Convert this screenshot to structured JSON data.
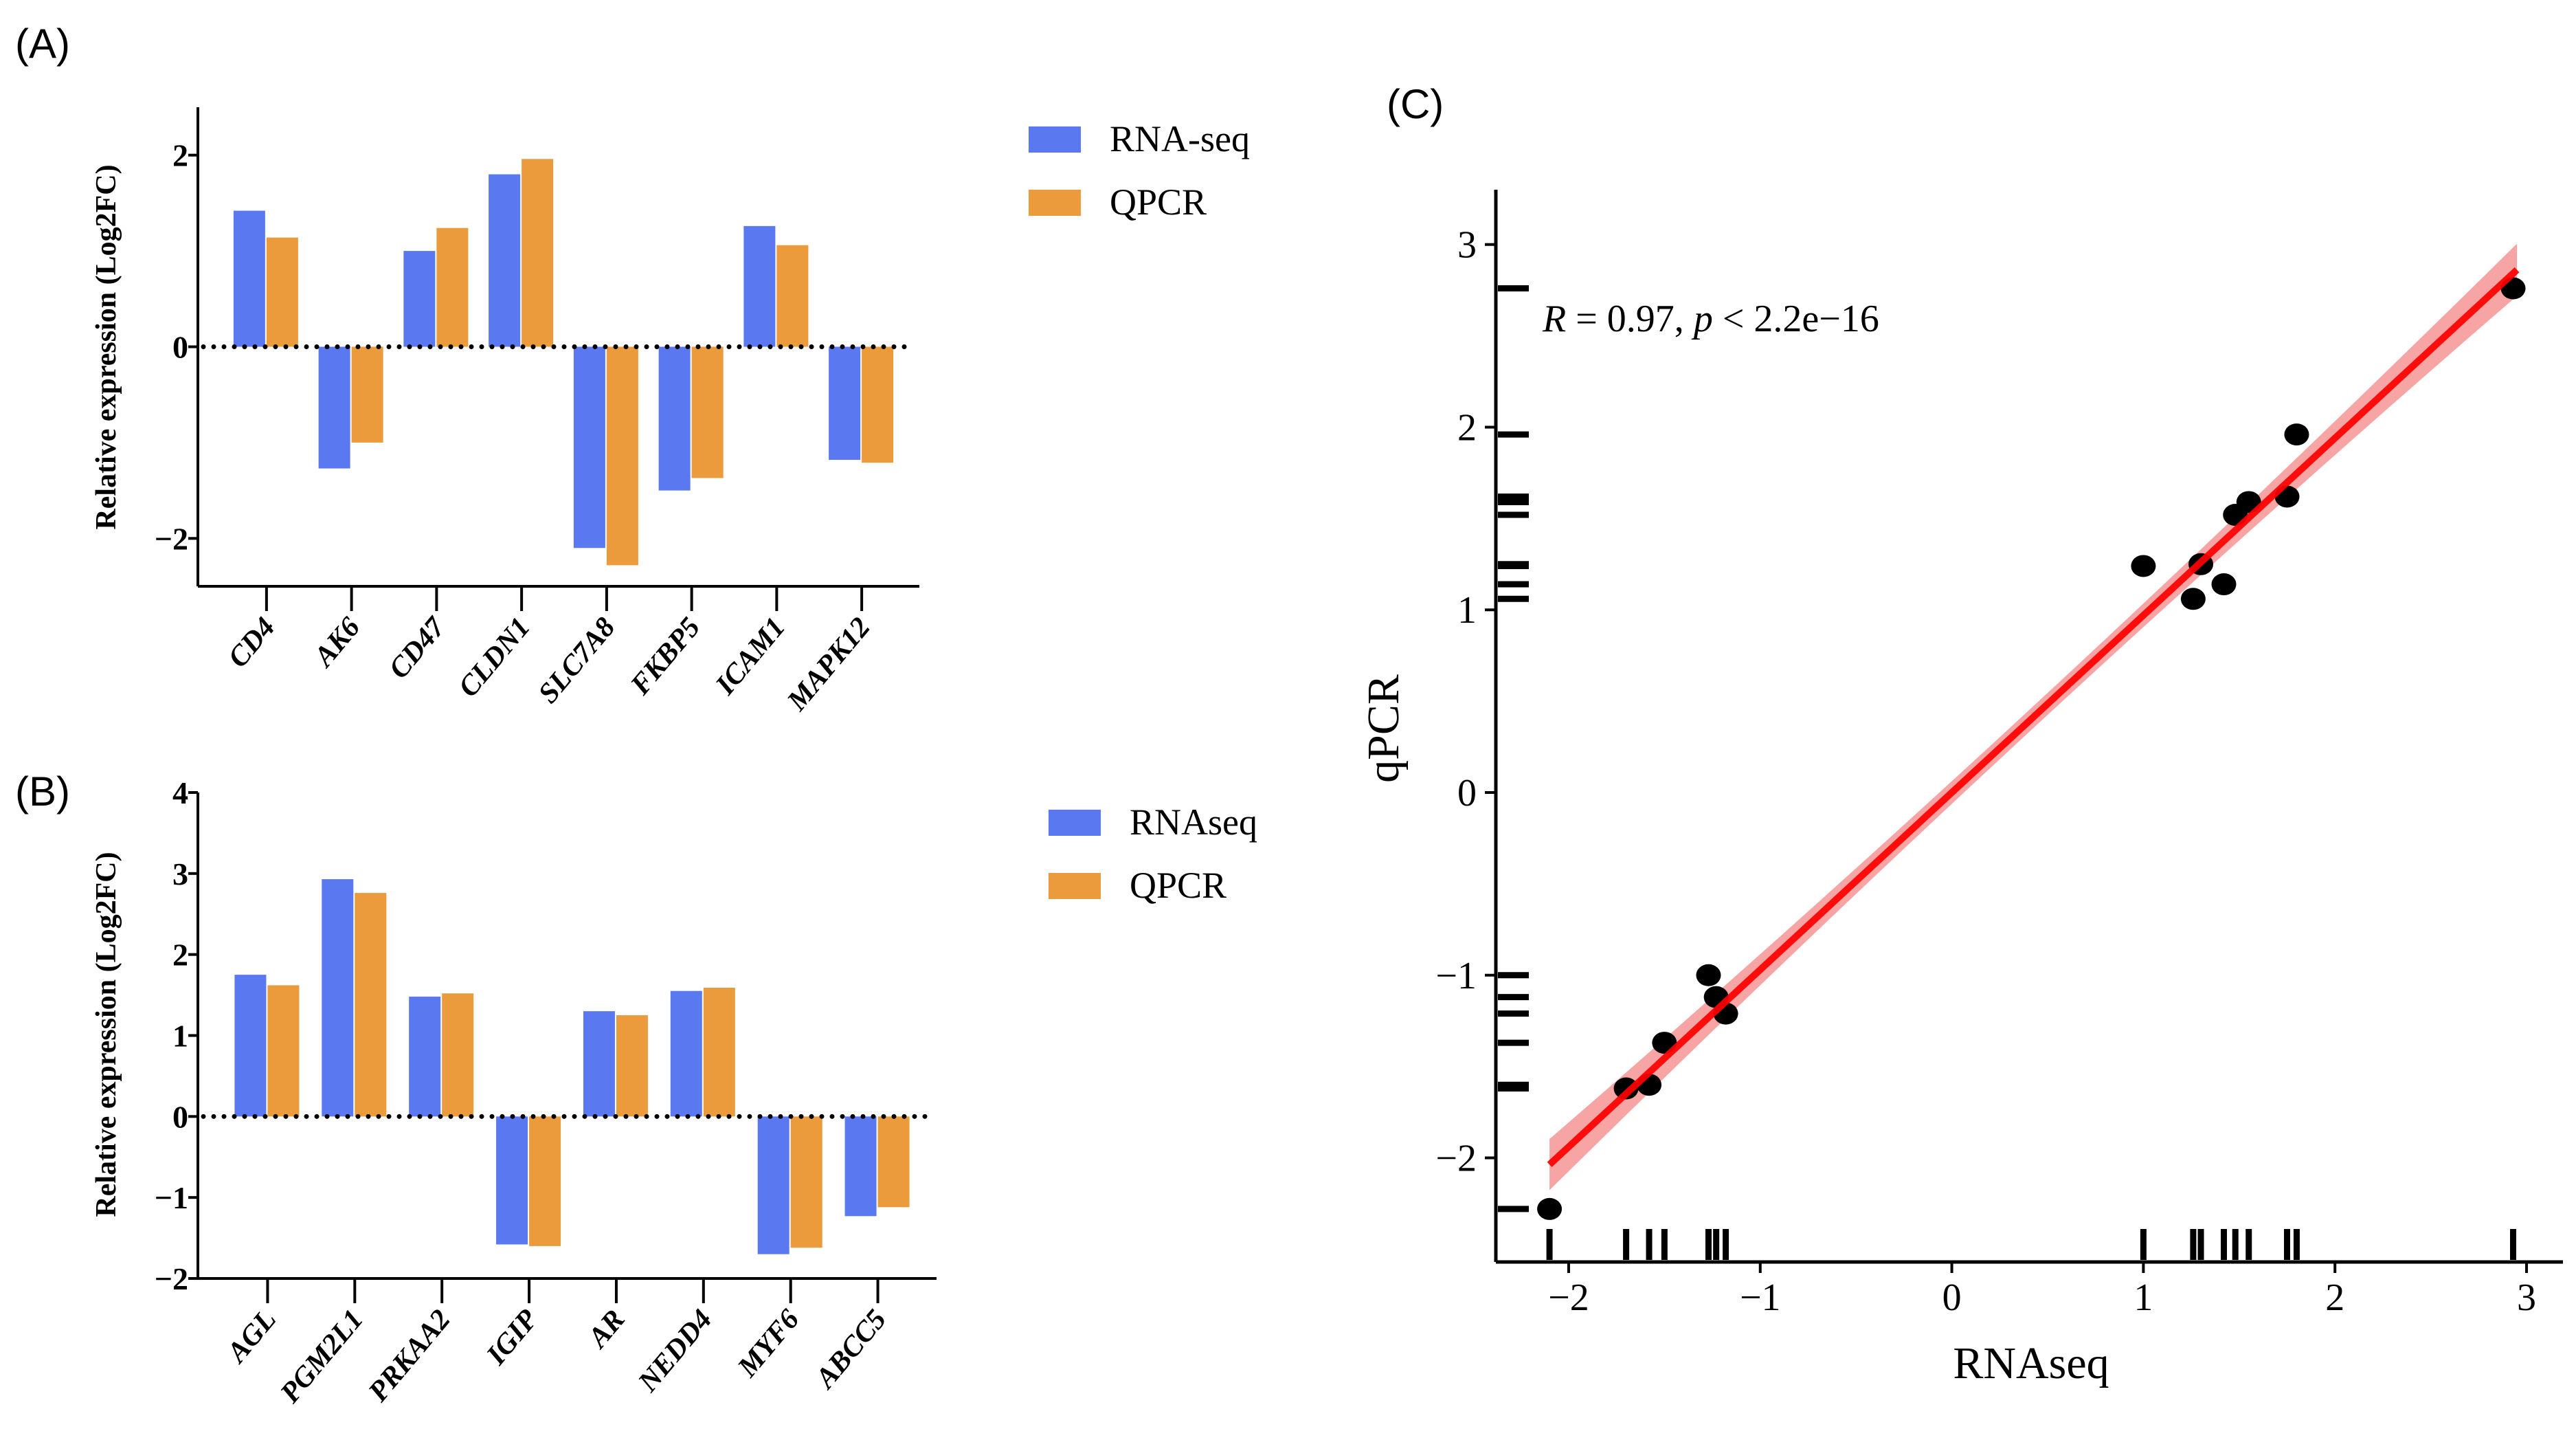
{
  "chart_data": [
    {
      "panel": "(A)",
      "type": "bar",
      "ylabel": "Relative expression (Log2FC)",
      "xlabel": "",
      "ylim": [
        -2.5,
        2.5
      ],
      "yticks": [
        2,
        0,
        -2
      ],
      "grid": false,
      "legend_position": "right",
      "categories": [
        "CD4",
        "AK6",
        "CD47",
        "CLDN1",
        "SLC7A8",
        "FKBP5",
        "ICAM1",
        "MAPK12"
      ],
      "series": [
        {
          "name": "RNA-seq",
          "color": "#5a78f0",
          "values": [
            1.42,
            -1.27,
            1.0,
            1.8,
            -2.1,
            -1.5,
            1.26,
            -1.18
          ]
        },
        {
          "name": "QPCR",
          "color": "#eb9a3c",
          "values": [
            1.14,
            -1.0,
            1.24,
            1.96,
            -2.28,
            -1.37,
            1.06,
            -1.21
          ]
        }
      ]
    },
    {
      "panel": "(B)",
      "type": "bar",
      "ylabel": "Relative expression (Log2FC)",
      "xlabel": "",
      "ylim": [
        -2,
        4
      ],
      "yticks": [
        4,
        3,
        2,
        1,
        0,
        -1,
        -2
      ],
      "grid": false,
      "legend_position": "right",
      "categories": [
        "AGL",
        "PGM2L1",
        "PRKAA2",
        "IGIP",
        "AR",
        "NEDD4",
        "MYF6",
        "ABCC5"
      ],
      "series": [
        {
          "name": "RNAseq",
          "color": "#5a78f0",
          "values": [
            1.75,
            2.93,
            1.48,
            -1.58,
            1.3,
            1.55,
            -1.7,
            -1.23
          ]
        },
        {
          "name": "QPCR",
          "color": "#eb9a3c",
          "values": [
            1.62,
            2.76,
            1.52,
            -1.6,
            1.25,
            1.59,
            -1.62,
            -1.12
          ]
        }
      ]
    },
    {
      "panel": "(C)",
      "type": "scatter",
      "xlabel": "RNAseq",
      "ylabel": "qPCR",
      "xlim": [
        -2.38,
        3.19
      ],
      "ylim": [
        -2.57,
        3.3
      ],
      "xticks": [
        -2,
        -1,
        0,
        1,
        2,
        3
      ],
      "yticks": [
        -2,
        -1,
        0,
        1,
        2,
        3
      ],
      "grid": false,
      "annotation": {
        "R_label": "R",
        "R_text": " = 0.97, ",
        "p_label": "p",
        "p_text": " < 2.2e−16"
      },
      "regression": {
        "slope": 0.97,
        "intercept": 0.0,
        "x_range": [
          -2.1,
          2.95
        ],
        "ci_halfwidth_ends": 0.14,
        "ci_halfwidth_mid": 0.06,
        "color": "#ff0000",
        "band_color": "#f59a9a"
      },
      "points": [
        {
          "x": 1.42,
          "y": 1.14
        },
        {
          "x": -1.27,
          "y": -1.0
        },
        {
          "x": 1.0,
          "y": 1.24
        },
        {
          "x": 1.8,
          "y": 1.96
        },
        {
          "x": -2.1,
          "y": -2.28
        },
        {
          "x": -1.5,
          "y": -1.37
        },
        {
          "x": 1.26,
          "y": 1.06
        },
        {
          "x": -1.18,
          "y": -1.21
        },
        {
          "x": 1.75,
          "y": 1.62
        },
        {
          "x": 2.93,
          "y": 2.76
        },
        {
          "x": 1.48,
          "y": 1.52
        },
        {
          "x": -1.58,
          "y": -1.6
        },
        {
          "x": 1.3,
          "y": 1.25
        },
        {
          "x": 1.55,
          "y": 1.59
        },
        {
          "x": -1.7,
          "y": -1.62
        },
        {
          "x": -1.23,
          "y": -1.12
        }
      ],
      "rug": true
    }
  ]
}
